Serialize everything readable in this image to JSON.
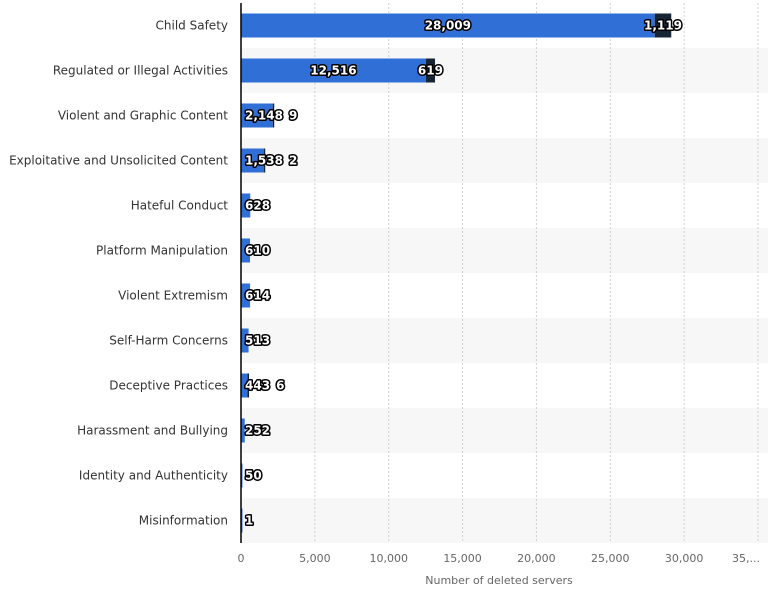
{
  "chart_data": {
    "type": "bar",
    "orientation": "horizontal",
    "stacked": true,
    "categories": [
      "Child Safety",
      "Regulated or Illegal Activities",
      "Violent and Graphic Content",
      "Exploitative and Unsolicited Content",
      "Hateful Conduct",
      "Platform Manipulation",
      "Violent Extremism",
      "Self-Harm Concerns",
      "Deceptive Practices",
      "Harassment and Bullying",
      "Identity and Authenticity",
      "Misinformation"
    ],
    "series": [
      {
        "color": "#2f6fd6",
        "values": [
          28009,
          12516,
          2148,
          1538,
          628,
          610,
          614,
          513,
          443,
          252,
          50,
          1
        ]
      },
      {
        "color": "#162433",
        "values": [
          1119,
          619,
          9,
          2,
          0,
          0,
          0,
          0,
          6,
          0,
          0,
          0
        ]
      }
    ],
    "xlabel": "Number of deleted servers",
    "xlim": [
      0,
      35000
    ],
    "xticks": [
      "0",
      "5,000",
      "10,000",
      "15,000",
      "20,000",
      "25,000",
      "30,000",
      "35,..."
    ],
    "grid": true
  }
}
